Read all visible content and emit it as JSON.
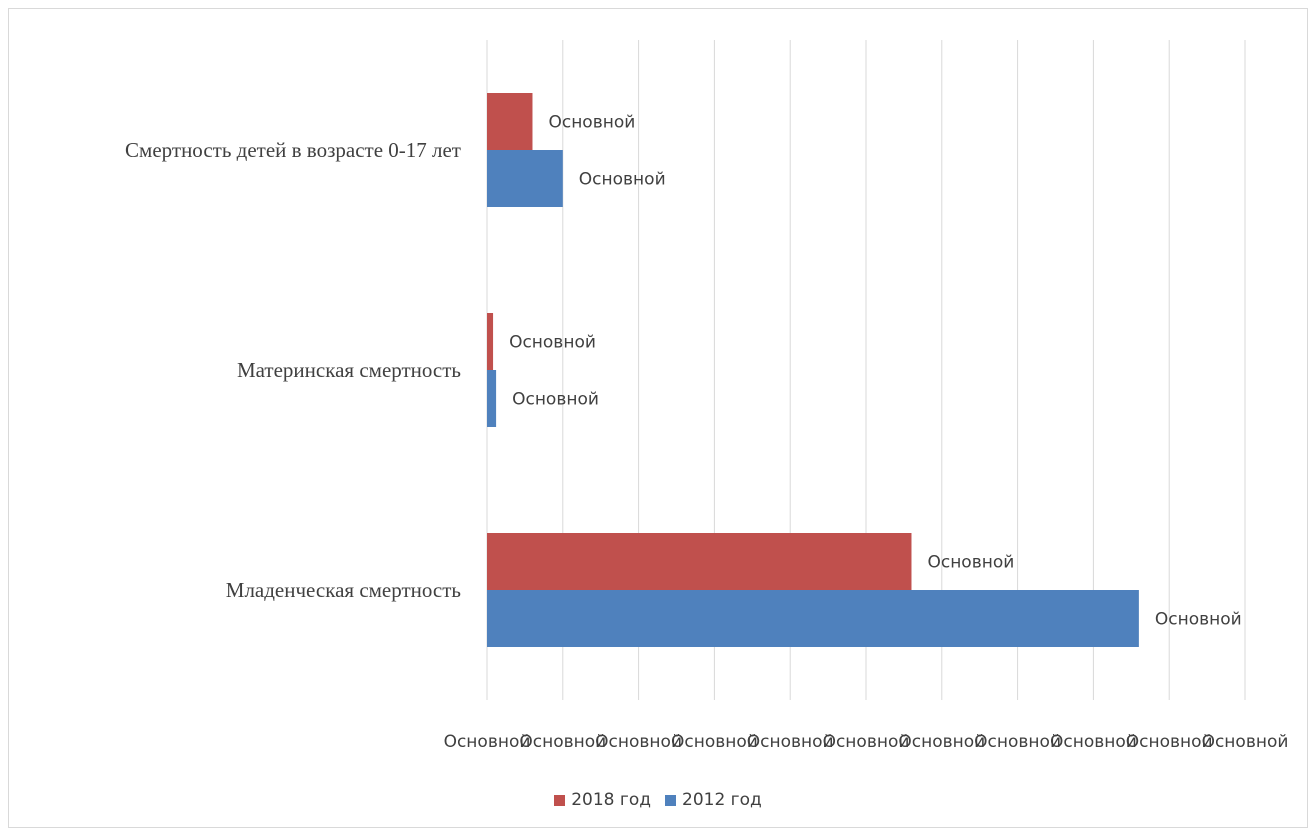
{
  "chart_data": {
    "type": "bar",
    "orientation": "horizontal",
    "categories": [
      "Смертность детей в возрасте 0-17 лет",
      "Материнская смертность",
      "Младенческая смертность"
    ],
    "series": [
      {
        "name": "2018 год",
        "color": "#c0504d",
        "values": [
          6,
          0.8,
          56
        ],
        "data_labels": [
          "Основной",
          "Основной",
          "Основной"
        ]
      },
      {
        "name": "2012 год",
        "color": "#4f81bd",
        "values": [
          10,
          1.2,
          86
        ],
        "data_labels": [
          "Основной",
          "Основной",
          "Основной"
        ]
      }
    ],
    "xlim": [
      0,
      100
    ],
    "x_tick_labels": [
      "Основной",
      "Основной",
      "Основной",
      "Основной",
      "Основной",
      "Основной",
      "Основной",
      "Основной",
      "Основной",
      "Основной",
      "Основной"
    ],
    "grid": "vertical",
    "legend_position": "bottom"
  }
}
